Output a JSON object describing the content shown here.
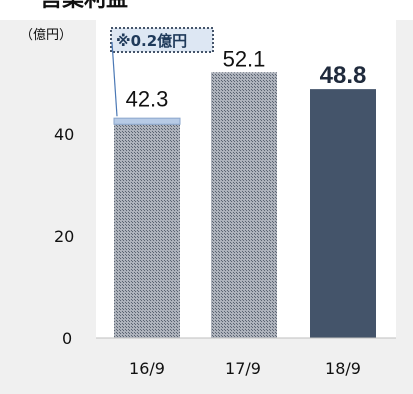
{
  "chart_data": {
    "type": "bar",
    "title": "営業利益",
    "unit_label": "（億円）",
    "categories": [
      "16/9",
      "17/9",
      "18/9"
    ],
    "values": [
      42.3,
      52.1,
      48.8
    ],
    "value_labels": [
      "42.3",
      "52.1",
      "48.8"
    ],
    "highlight_index": 2,
    "yticks": [
      0,
      20,
      40
    ],
    "ylim": [
      0,
      56
    ],
    "annotation": {
      "text": "※0.2億円",
      "category_index": 0,
      "segment_value": 0.2
    },
    "colors": {
      "hatched_bar": "#8f96a3",
      "highlight_bar": "#44546a",
      "annotation_segment": "#b7cbe6",
      "annotation_border": "#44546a",
      "plot_background": "#f0f0f0",
      "frame_background": "#ffffff"
    }
  }
}
